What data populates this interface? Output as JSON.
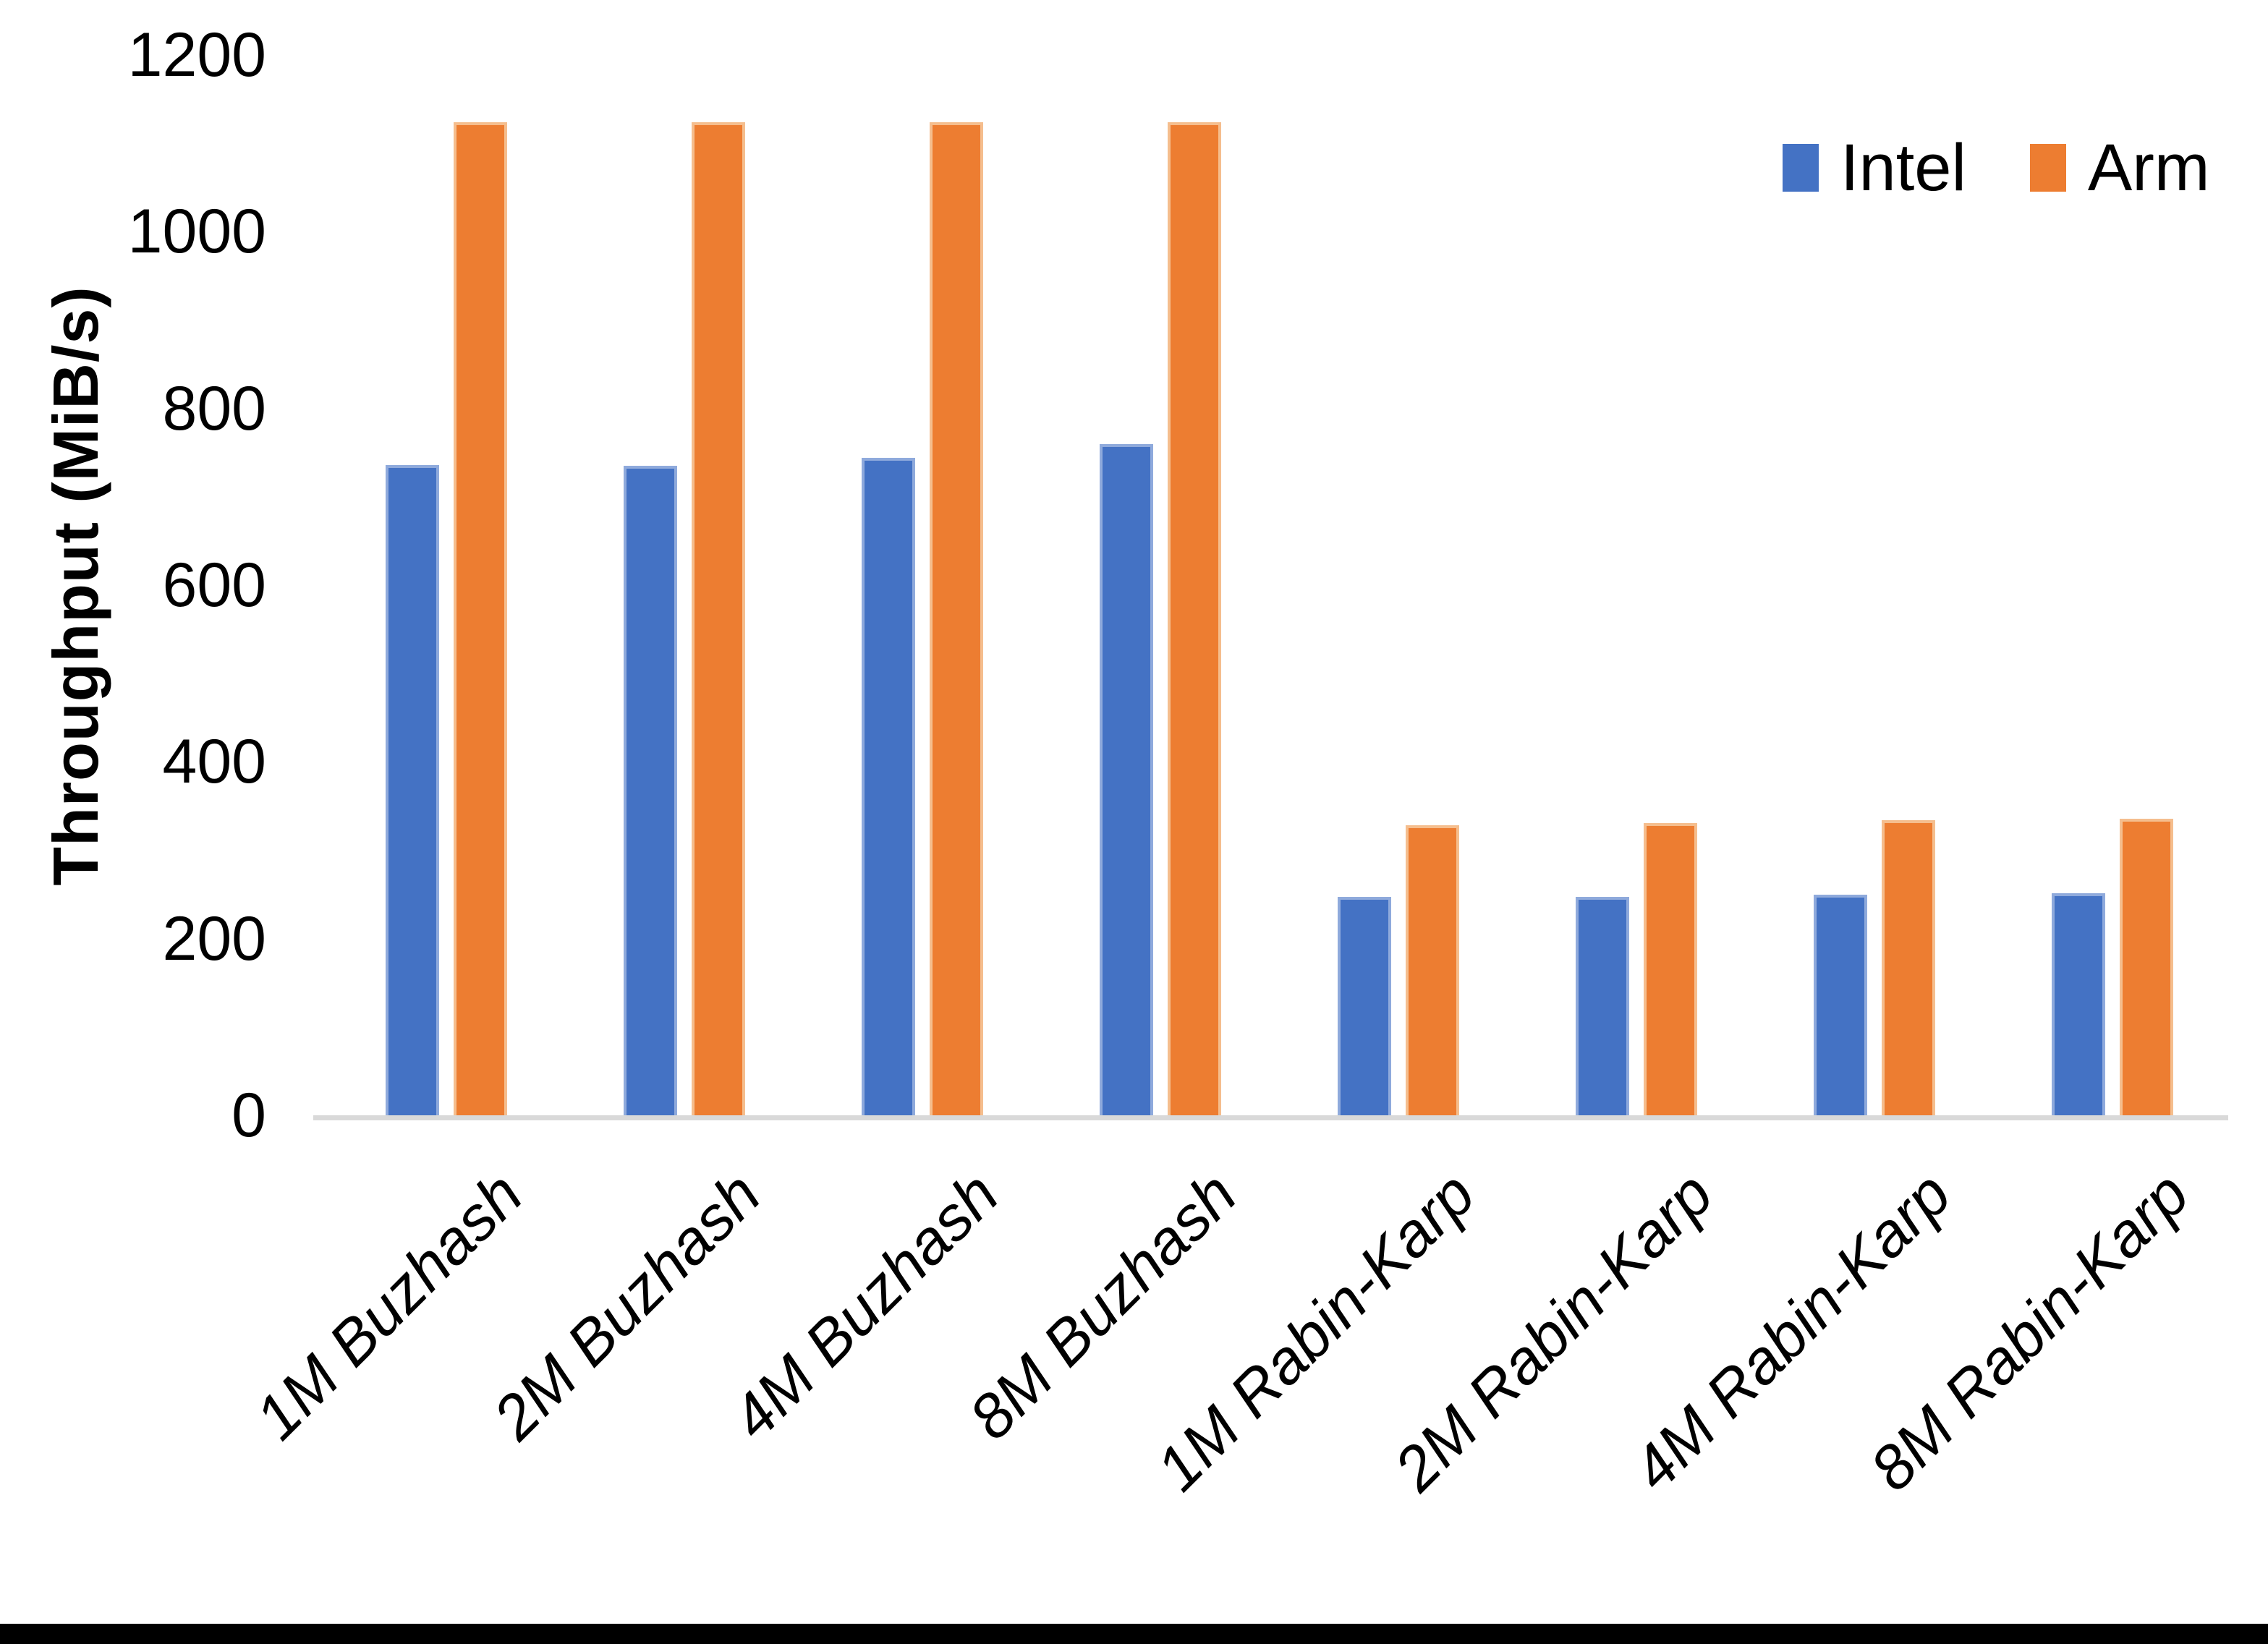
{
  "chart_data": {
    "type": "bar",
    "title": "",
    "xlabel": "",
    "ylabel": "Throughput (MiB/s)",
    "ylim": [
      0,
      1200
    ],
    "yticks": [
      0,
      200,
      400,
      600,
      800,
      1000,
      1200
    ],
    "grid": false,
    "legend_position": "top-right",
    "categories": [
      "1M Buzhash",
      "2M Buzhash",
      "4M Buzhash",
      "8M Buzhash",
      "1M Rabin-Karp",
      "2M Rabin-Karp",
      "4M Rabin-Karp",
      "8M Rabin-Karp"
    ],
    "series": [
      {
        "name": "Intel",
        "color": "#4472C4",
        "outline_color": "#8FAADC",
        "values": [
          736,
          735,
          744,
          760,
          247,
          247,
          250,
          251
        ]
      },
      {
        "name": "Arm",
        "color": "#ED7D31",
        "outline_color": "#F5BE8E",
        "values": [
          1124,
          1124,
          1124,
          1124,
          328,
          331,
          334,
          336
        ]
      }
    ],
    "axis_line_color": "#D9D9D9",
    "text_color": "#000000",
    "background_color": "#FFFFFF",
    "bottom_edge_color": "#000000"
  },
  "legend": {
    "items": [
      {
        "label": "Intel"
      },
      {
        "label": "Arm"
      }
    ]
  }
}
